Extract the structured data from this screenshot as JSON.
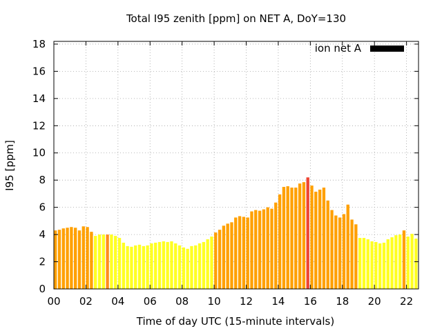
{
  "chart_data": {
    "type": "bar",
    "title": "Total I95 zenith [ppm] on NET A, DoY=130",
    "xlabel": "Time of day UTC (15-minute intervals)",
    "ylabel": "I95 [ppm]",
    "xlim": [
      0,
      22.75
    ],
    "ylim": [
      0,
      18.2
    ],
    "x_ticks": [
      0,
      2,
      4,
      6,
      8,
      10,
      12,
      14,
      16,
      18,
      20,
      22
    ],
    "x_tick_labels": [
      "00",
      "02",
      "04",
      "06",
      "08",
      "10",
      "12",
      "14",
      "16",
      "18",
      "20",
      "22"
    ],
    "y_ticks": [
      0,
      2,
      4,
      6,
      8,
      10,
      12,
      14,
      16,
      18
    ],
    "y_tick_labels": [
      "0",
      "2",
      "4",
      "6",
      "8",
      "10",
      "12",
      "14",
      "16",
      "18"
    ],
    "grid": true,
    "legend_position": "top-right",
    "series": [
      {
        "name": "ion net A",
        "color": "#000000",
        "x_start": 0,
        "x_step": 0.25,
        "values": [
          4.3,
          4.35,
          4.45,
          4.5,
          4.55,
          4.5,
          4.3,
          4.6,
          4.55,
          4.2,
          3.9,
          4.0,
          4.0,
          4.0,
          4.0,
          3.9,
          3.75,
          3.4,
          3.15,
          3.1,
          3.2,
          3.25,
          3.15,
          3.2,
          3.35,
          3.4,
          3.45,
          3.5,
          3.45,
          3.5,
          3.35,
          3.2,
          3.05,
          2.95,
          3.15,
          3.2,
          3.35,
          3.45,
          3.65,
          3.85,
          4.15,
          4.35,
          4.65,
          4.8,
          4.9,
          5.25,
          5.35,
          5.3,
          5.25,
          5.7,
          5.8,
          5.75,
          5.85,
          6.0,
          5.9,
          6.35,
          6.95,
          7.5,
          7.55,
          7.45,
          7.45,
          7.75,
          7.85,
          8.2,
          7.6,
          7.15,
          7.3,
          7.45,
          6.5,
          5.8,
          5.4,
          5.25,
          5.5,
          6.2,
          5.1,
          4.75,
          3.75,
          3.75,
          3.65,
          3.5,
          3.45,
          3.35,
          3.4,
          3.65,
          3.8,
          3.95,
          4.0,
          4.3,
          3.85,
          4.05,
          3.7
        ],
        "bar_colors": [
          "#ffa000",
          "#ffa000",
          "#ffa000",
          "#ffa000",
          "#ffa000",
          "#ffa000",
          "#ffa000",
          "#ffa000",
          "#ffa000",
          "#ffa000",
          "#ffff22",
          "#ffff22",
          "#ffff22",
          "#ff8c1c",
          "#ffff22",
          "#ffff22",
          "#ffff22",
          "#ffff22",
          "#ffff22",
          "#ffff22",
          "#ffff22",
          "#ffff22",
          "#ffff22",
          "#ffff22",
          "#ffff22",
          "#ffff22",
          "#ffff22",
          "#ffff22",
          "#ffff22",
          "#ffff22",
          "#ffff22",
          "#ffff22",
          "#ffff22",
          "#ffff22",
          "#ffff22",
          "#ffff22",
          "#ffff22",
          "#ffff22",
          "#ffff22",
          "#ffff22",
          "#ffa000",
          "#ffa000",
          "#ffa000",
          "#ffa000",
          "#ffa000",
          "#ffa000",
          "#ffa000",
          "#ffa000",
          "#ffa000",
          "#ffa000",
          "#ffa000",
          "#ffa000",
          "#ffa000",
          "#ffa000",
          "#ffa000",
          "#ffa000",
          "#ffa000",
          "#ffa000",
          "#ffa000",
          "#ffa000",
          "#ffa000",
          "#ffa000",
          "#ffa000",
          "#ee4433",
          "#ffa000",
          "#ffa000",
          "#ffa000",
          "#ffa000",
          "#ffa000",
          "#ffa000",
          "#ffa000",
          "#ffa000",
          "#ffa000",
          "#ffa000",
          "#ffa000",
          "#ffa000",
          "#ffff22",
          "#ffff22",
          "#ffff22",
          "#ffff22",
          "#ffff22",
          "#ffff22",
          "#ffff22",
          "#ffff22",
          "#ffff22",
          "#ffff22",
          "#ffff22",
          "#ffa000",
          "#ffff22",
          "#ffff22",
          "#ffff22"
        ]
      }
    ]
  }
}
